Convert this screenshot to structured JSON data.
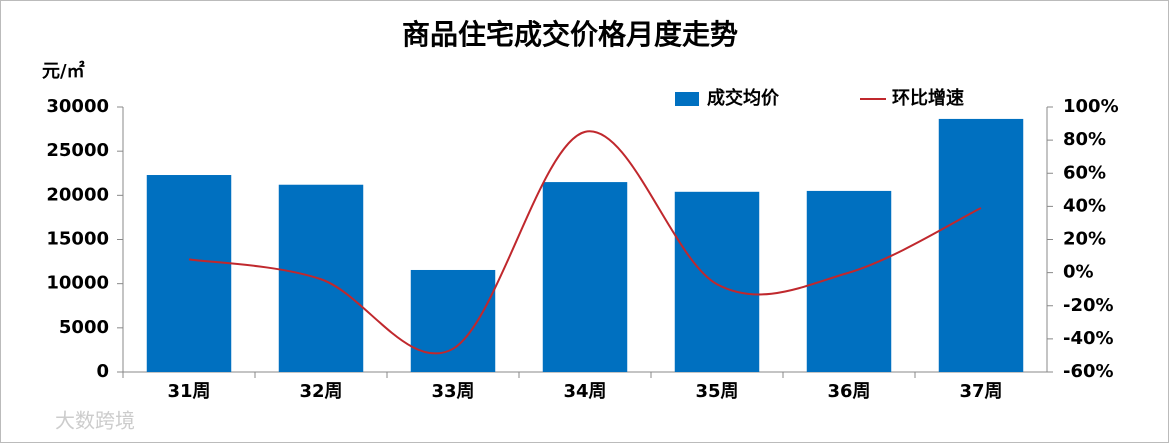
{
  "chart_data": {
    "type": "bar-line",
    "title": "商品住宅成交价格月度走势",
    "y_label": "元/㎡",
    "categories": [
      "31周",
      "32周",
      "33周",
      "34周",
      "35周",
      "36周",
      "37周"
    ],
    "series": [
      {
        "name": "成交均价",
        "type": "bar",
        "color": "#0070c0",
        "values": [
          22300,
          21200,
          11550,
          21500,
          20400,
          20500,
          28650
        ]
      },
      {
        "name": "环比增速",
        "type": "line",
        "axis": "y2",
        "color": "#c0282d",
        "values": [
          8,
          -4,
          -46,
          85,
          -7,
          0,
          39
        ]
      }
    ],
    "ylim": [
      0,
      30000
    ],
    "yticks": [
      0,
      5000,
      10000,
      15000,
      20000,
      25000,
      30000
    ],
    "y2lim": [
      -60,
      100
    ],
    "y2ticks": [
      {
        "value": -60,
        "label": "-60%"
      },
      {
        "value": -40,
        "label": "-40%"
      },
      {
        "value": -20,
        "label": "-20%"
      },
      {
        "value": 0,
        "label": "0%"
      },
      {
        "value": 20,
        "label": "20%"
      },
      {
        "value": 40,
        "label": "40%"
      },
      {
        "value": 60,
        "label": "60%"
      },
      {
        "value": 80,
        "label": "80%"
      },
      {
        "value": 100,
        "label": "100%"
      }
    ],
    "legend": "top-right",
    "watermark": "大数跨境"
  }
}
